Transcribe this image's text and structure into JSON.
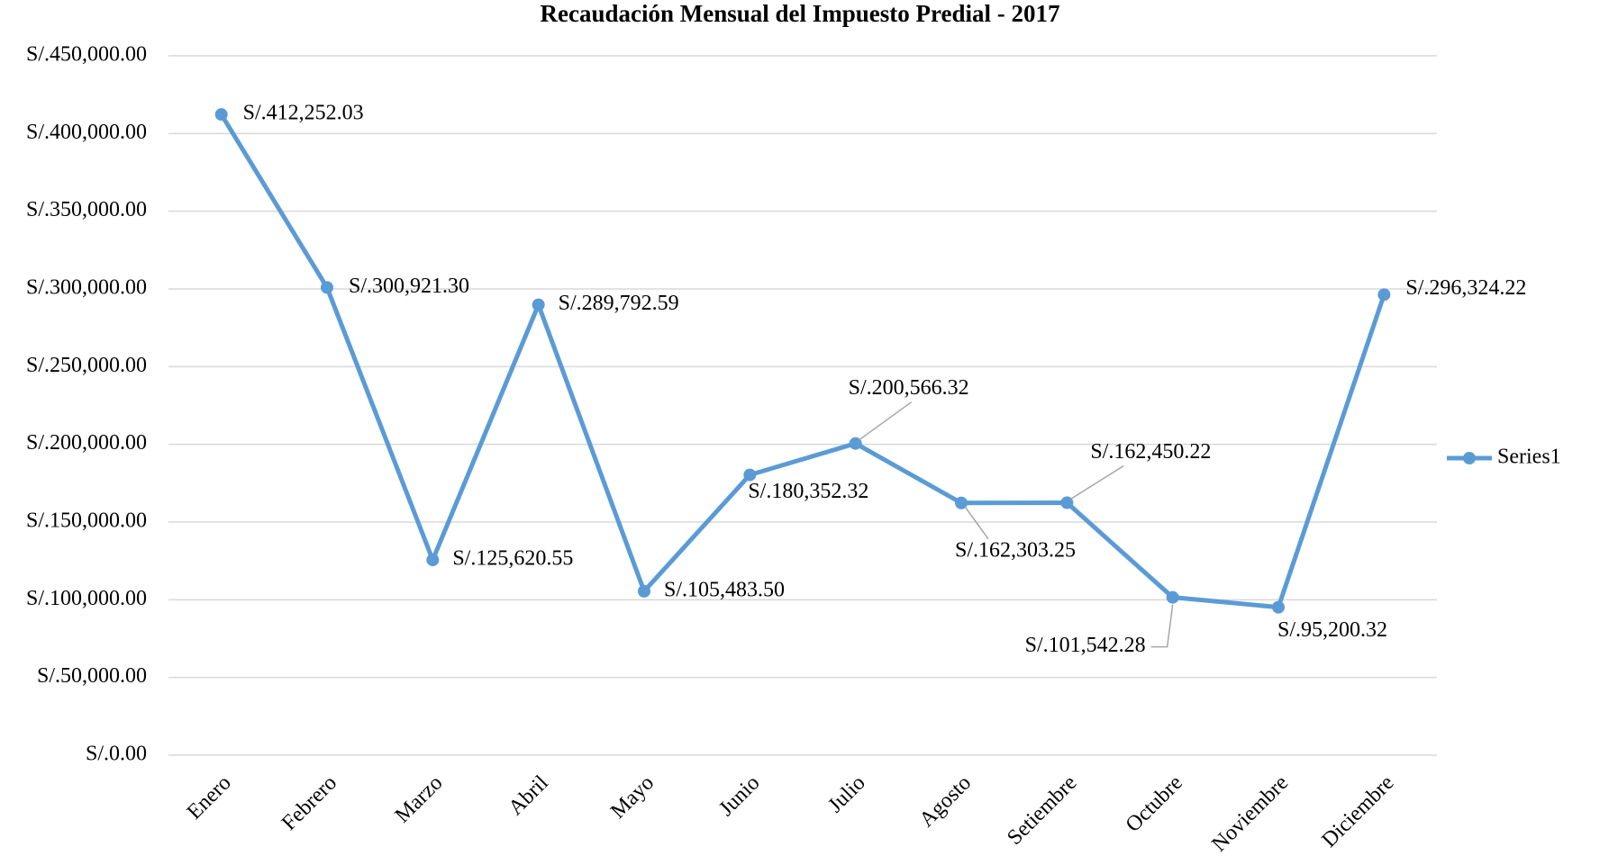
{
  "chart_data": {
    "type": "line",
    "title": "Recaudación Mensual del Impuesto Predial - 2017",
    "categories": [
      "Enero",
      "Febrero",
      "Marzo",
      "Abril",
      "Mayo",
      "Junio",
      "Julio",
      "Agosto",
      "Setiembre",
      "Octubre",
      "Noviembre",
      "Diciembre"
    ],
    "series": [
      {
        "name": "Series1",
        "color": "#5b9bd5",
        "values": [
          412252.03,
          300921.3,
          125620.55,
          289792.59,
          105483.5,
          180352.32,
          200566.32,
          162303.25,
          162450.22,
          101542.28,
          95200.32,
          296324.22
        ],
        "value_labels": [
          "S/.412,252.03",
          "S/.300,921.30",
          "S/.125,620.55",
          "S/.289,792.59",
          "S/.105,483.50",
          "S/.180,352.32",
          "S/.200,566.32",
          "S/.162,303.25",
          "S/.162,450.22",
          "S/.101,542.28",
          "S/.95,200.32",
          "S/.296,324.22"
        ]
      }
    ],
    "ylim": [
      0,
      450000
    ],
    "yticks": [
      {
        "value": 0,
        "label": "S/.0.00"
      },
      {
        "value": 50000,
        "label": "S/.50,000.00"
      },
      {
        "value": 100000,
        "label": "S/.100,000.00"
      },
      {
        "value": 150000,
        "label": "S/.150,000.00"
      },
      {
        "value": 200000,
        "label": "S/.200,000.00"
      },
      {
        "value": 250000,
        "label": "S/.250,000.00"
      },
      {
        "value": 300000,
        "label": "S/.300,000.00"
      },
      {
        "value": 350000,
        "label": "S/.350,000.00"
      },
      {
        "value": 400000,
        "label": "S/.400,000.00"
      },
      {
        "value": 450000,
        "label": "S/.450,000.00"
      }
    ],
    "grid": true,
    "legend": "right"
  }
}
